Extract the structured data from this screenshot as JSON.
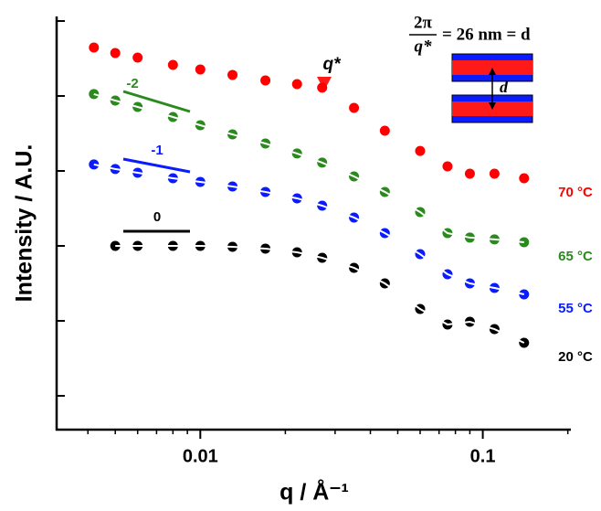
{
  "chart_data": {
    "type": "scatter",
    "xlabel": "q / Å⁻¹",
    "ylabel": "Intensity / A.U.",
    "xscale": "log",
    "yscale": "log",
    "xlim": [
      0.0031,
      0.205
    ],
    "ylim": [
      0.354,
      115000
    ],
    "xticks": [
      0.01,
      0.1
    ],
    "xminorticks": [
      0.004,
      0.005,
      0.006,
      0.007,
      0.008,
      0.009,
      0.02,
      0.03,
      0.04,
      0.05,
      0.06,
      0.07,
      0.08,
      0.09,
      0.2
    ],
    "yticks": [
      1,
      10,
      100,
      1000,
      10000,
      100000
    ],
    "ytick_labels": false,
    "x": [
      0.0042,
      0.005,
      0.006,
      0.008,
      0.01,
      0.013,
      0.017,
      0.022,
      0.027,
      0.035,
      0.045,
      0.06,
      0.075,
      0.09,
      0.11,
      0.14
    ],
    "series": [
      {
        "name": "70 °C",
        "color": "#ff0000",
        "fit": false,
        "values": [
          44300,
          37400,
          32500,
          26000,
          22600,
          19100,
          16100,
          14400,
          12900,
          6940,
          3440,
          1850,
          1150,
          919,
          919,
          798
        ]
      },
      {
        "name": "65 °C",
        "color": "#2a8a1e",
        "fit": true,
        "values": [
          10600,
          8690,
          7140,
          5240,
          4070,
          3070,
          2320,
          1710,
          1290,
          845,
          525,
          283,
          148,
          129,
          122,
          112
        ]
      },
      {
        "name": "55 °C",
        "color": "#0a1cff",
        "fit": true,
        "values": [
          1220,
          1060,
          946,
          798,
          714,
          621,
          525,
          431,
          344,
          239,
          148,
          77.6,
          41.9,
          31.6,
          27.5,
          22.6
        ]
      },
      {
        "name": "20 °C",
        "color": "#000000",
        "fit": true,
        "values": [
          null,
          100,
          100,
          100,
          100,
          97.2,
          91.9,
          82.2,
          69.4,
          51.0,
          31.6,
          14.4,
          8.93,
          9.72,
          7.76,
          5.1
        ]
      }
    ],
    "slope_labels": [
      {
        "text": "-2",
        "color": "#2a8a1e"
      },
      {
        "text": "-1",
        "color": "#0a1cff"
      },
      {
        "text": "0",
        "color": "#000000"
      }
    ],
    "peak_label": "q*",
    "inset": {
      "numerator": "2π",
      "denominator": "q*",
      "rhs": "= 26 nm = d",
      "spacing_label": "d"
    }
  }
}
